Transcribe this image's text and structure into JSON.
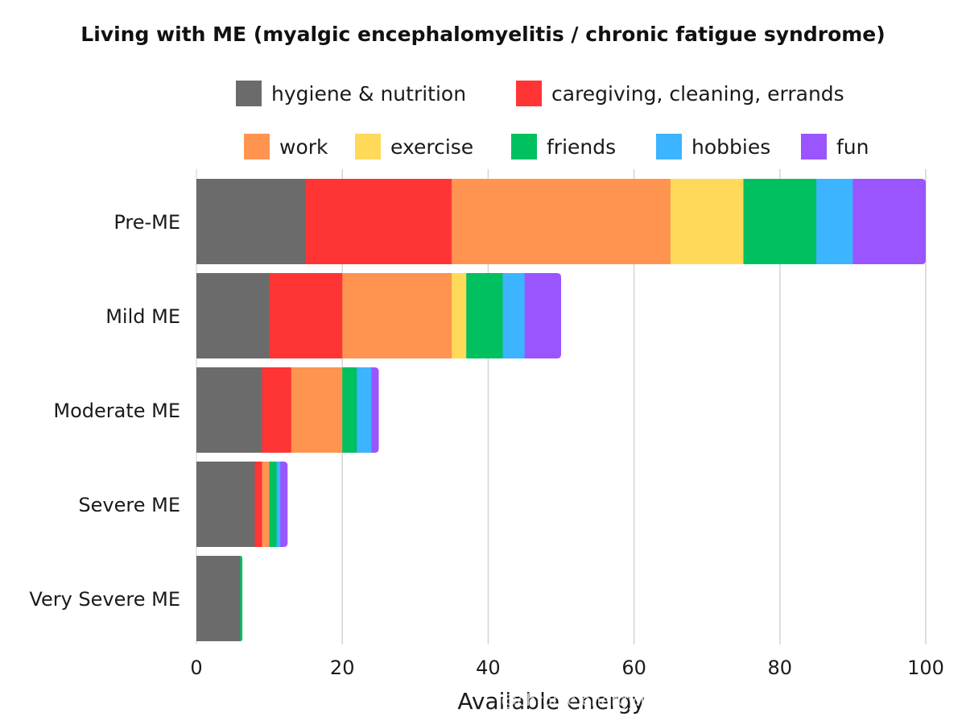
{
  "chart_data": {
    "type": "bar",
    "orientation": "horizontal",
    "stacked": true,
    "title": "Living with ME (myalgic encephalomyelitis / chronic fatigue syndrome)",
    "xlabel": "Available energy",
    "ylabel": "",
    "xlim": [
      0,
      100
    ],
    "xticks": [
      0,
      20,
      40,
      60,
      80,
      100
    ],
    "grid": true,
    "legend_position": "top",
    "categories": [
      "Pre-ME",
      "Mild ME",
      "Moderate ME",
      "Severe ME",
      "Very Severe ME"
    ],
    "series": [
      {
        "name": "hygiene & nutrition",
        "color": "#6b6b6b",
        "values": [
          15,
          10,
          9,
          8,
          6
        ]
      },
      {
        "name": "caregiving, cleaning, errands",
        "color": "#ff3535",
        "values": [
          20,
          10,
          4,
          1,
          0
        ]
      },
      {
        "name": "work",
        "color": "#ff9450",
        "values": [
          30,
          15,
          7,
          1,
          0
        ]
      },
      {
        "name": "exercise",
        "color": "#ffd95a",
        "values": [
          10,
          2,
          0,
          0,
          0
        ]
      },
      {
        "name": "friends",
        "color": "#00c060",
        "values": [
          10,
          5,
          2,
          1,
          0.3
        ]
      },
      {
        "name": "hobbies",
        "color": "#3cb4ff",
        "values": [
          5,
          3,
          2,
          0.5,
          0
        ]
      },
      {
        "name": "fun",
        "color": "#9a55ff",
        "values": [
          10,
          5,
          1,
          1,
          0
        ]
      }
    ]
  },
  "watermark": "@chronic.energy.fighting_"
}
